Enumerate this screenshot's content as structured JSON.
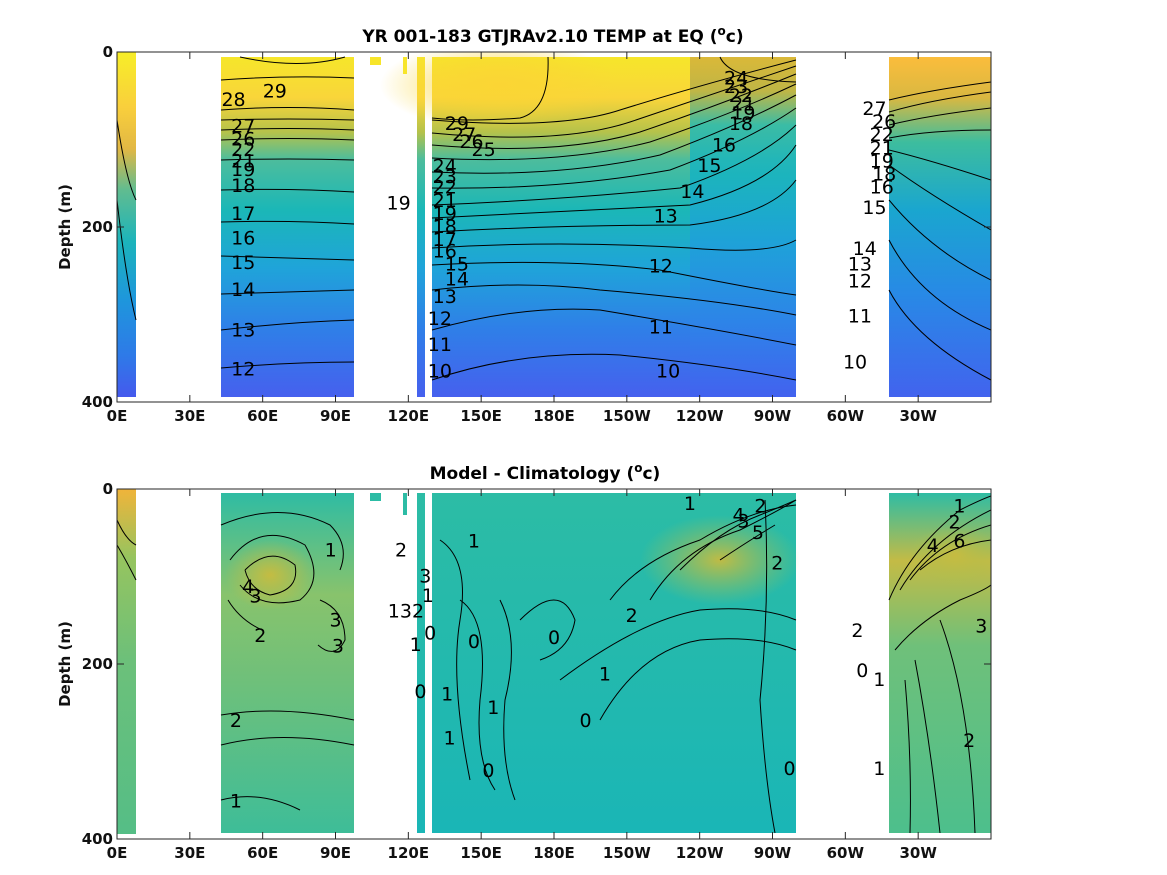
{
  "chart_data": [
    {
      "type": "heatmap",
      "title_main": "YR 001-183 GTJRAv2.10 TEMP at EQ (",
      "title_unit": "c)",
      "ylabel": "Depth (m)",
      "x_tick_labels": [
        "0E",
        "30E",
        "60E",
        "90E",
        "120E",
        "150E",
        "180E",
        "150W",
        "120W",
        "90W",
        "60W",
        "30W"
      ],
      "x_ticks_deg": [
        0,
        30,
        60,
        90,
        120,
        150,
        180,
        210,
        240,
        270,
        300,
        330
      ],
      "x_range": [
        0,
        360
      ],
      "y_tick_labels": [
        "0",
        "200",
        "400"
      ],
      "y_ticks": [
        0,
        200,
        400
      ],
      "y_range": [
        0,
        400
      ],
      "y_reversed": true,
      "land_gaps": [
        [
          8,
          43
        ],
        [
          98,
          117
        ],
        [
          125,
          127
        ],
        [
          280,
          302
        ]
      ],
      "colormap": "parula",
      "contour_labels": [
        {
          "text": "29",
          "lon": 65,
          "depth": 45
        },
        {
          "text": "28",
          "lon": 48,
          "depth": 55
        },
        {
          "text": "27",
          "lon": 52,
          "depth": 85
        },
        {
          "text": "26",
          "lon": 52,
          "depth": 100
        },
        {
          "text": "22",
          "lon": 52,
          "depth": 112
        },
        {
          "text": "21",
          "lon": 52,
          "depth": 125
        },
        {
          "text": "19",
          "lon": 52,
          "depth": 135
        },
        {
          "text": "18",
          "lon": 52,
          "depth": 153
        },
        {
          "text": "17",
          "lon": 52,
          "depth": 185
        },
        {
          "text": "16",
          "lon": 52,
          "depth": 213
        },
        {
          "text": "15",
          "lon": 52,
          "depth": 241
        },
        {
          "text": "14",
          "lon": 52,
          "depth": 272
        },
        {
          "text": "13",
          "lon": 52,
          "depth": 318
        },
        {
          "text": "12",
          "lon": 52,
          "depth": 363
        },
        {
          "text": "19",
          "lon": 116,
          "depth": 173
        },
        {
          "text": "29",
          "lon": 140,
          "depth": 82
        },
        {
          "text": "27",
          "lon": 143,
          "depth": 95
        },
        {
          "text": "26",
          "lon": 146,
          "depth": 103
        },
        {
          "text": "25",
          "lon": 151,
          "depth": 112
        },
        {
          "text": "24",
          "lon": 135,
          "depth": 131
        },
        {
          "text": "23",
          "lon": 135,
          "depth": 143
        },
        {
          "text": "22",
          "lon": 135,
          "depth": 155
        },
        {
          "text": "21",
          "lon": 135,
          "depth": 170
        },
        {
          "text": "19",
          "lon": 135,
          "depth": 185
        },
        {
          "text": "18",
          "lon": 135,
          "depth": 200
        },
        {
          "text": "17",
          "lon": 135,
          "depth": 215
        },
        {
          "text": "16",
          "lon": 135,
          "depth": 228
        },
        {
          "text": "15",
          "lon": 140,
          "depth": 243
        },
        {
          "text": "14",
          "lon": 140,
          "depth": 260
        },
        {
          "text": "13",
          "lon": 135,
          "depth": 280
        },
        {
          "text": "12",
          "lon": 133,
          "depth": 305
        },
        {
          "text": "11",
          "lon": 133,
          "depth": 335
        },
        {
          "text": "10",
          "lon": 133,
          "depth": 365
        },
        {
          "text": "24",
          "lon": 255,
          "depth": 30
        },
        {
          "text": "23",
          "lon": 255,
          "depth": 40
        },
        {
          "text": "22",
          "lon": 257,
          "depth": 50
        },
        {
          "text": "21",
          "lon": 258,
          "depth": 60
        },
        {
          "text": "19",
          "lon": 258,
          "depth": 70
        },
        {
          "text": "18",
          "lon": 257,
          "depth": 82
        },
        {
          "text": "16",
          "lon": 250,
          "depth": 107
        },
        {
          "text": "15",
          "lon": 244,
          "depth": 130
        },
        {
          "text": "14",
          "lon": 237,
          "depth": 160
        },
        {
          "text": "13",
          "lon": 226,
          "depth": 188
        },
        {
          "text": "12",
          "lon": 224,
          "depth": 245
        },
        {
          "text": "11",
          "lon": 224,
          "depth": 315
        },
        {
          "text": "10",
          "lon": 227,
          "depth": 365
        },
        {
          "text": "27",
          "lon": 312,
          "depth": 65
        },
        {
          "text": "26",
          "lon": 316,
          "depth": 80
        },
        {
          "text": "22",
          "lon": 315,
          "depth": 95
        },
        {
          "text": "21",
          "lon": 315,
          "depth": 110
        },
        {
          "text": "19",
          "lon": 315,
          "depth": 125
        },
        {
          "text": "18",
          "lon": 316,
          "depth": 140
        },
        {
          "text": "16",
          "lon": 315,
          "depth": 155
        },
        {
          "text": "15",
          "lon": 312,
          "depth": 178
        },
        {
          "text": "14",
          "lon": 308,
          "depth": 225
        },
        {
          "text": "13",
          "lon": 306,
          "depth": 243
        },
        {
          "text": "12",
          "lon": 306,
          "depth": 262
        },
        {
          "text": "11",
          "lon": 306,
          "depth": 302
        },
        {
          "text": "10",
          "lon": 304,
          "depth": 355
        }
      ]
    },
    {
      "type": "heatmap",
      "title_main": "Model - Climatology (",
      "title_unit": "c)",
      "ylabel": "Depth (m)",
      "x_tick_labels": [
        "0E",
        "30E",
        "60E",
        "90E",
        "120E",
        "150E",
        "180E",
        "150W",
        "120W",
        "90W",
        "60W",
        "30W"
      ],
      "x_ticks_deg": [
        0,
        30,
        60,
        90,
        120,
        150,
        180,
        210,
        240,
        270,
        300,
        330
      ],
      "x_range": [
        0,
        360
      ],
      "y_tick_labels": [
        "0",
        "200",
        "400"
      ],
      "y_ticks": [
        0,
        200,
        400
      ],
      "y_range": [
        0,
        400
      ],
      "y_reversed": true,
      "land_gaps": [
        [
          8,
          43
        ],
        [
          98,
          117
        ],
        [
          125,
          127
        ],
        [
          280,
          302
        ]
      ],
      "colormap": "parula",
      "contour_labels": [
        {
          "text": "1",
          "lon": 88,
          "depth": 70
        },
        {
          "text": "4",
          "lon": 54,
          "depth": 112
        },
        {
          "text": "3",
          "lon": 57,
          "depth": 123
        },
        {
          "text": "3",
          "lon": 90,
          "depth": 150
        },
        {
          "text": "2",
          "lon": 59,
          "depth": 168
        },
        {
          "text": "3",
          "lon": 91,
          "depth": 180
        },
        {
          "text": "2",
          "lon": 49,
          "depth": 265
        },
        {
          "text": "1",
          "lon": 49,
          "depth": 357
        },
        {
          "text": "2",
          "lon": 117,
          "depth": 70
        },
        {
          "text": "3",
          "lon": 127,
          "depth": 100
        },
        {
          "text": "1",
          "lon": 128,
          "depth": 122
        },
        {
          "text": "0",
          "lon": 129,
          "depth": 165
        },
        {
          "text": "132",
          "lon": 119,
          "depth": 140
        },
        {
          "text": "1",
          "lon": 123,
          "depth": 178
        },
        {
          "text": "0",
          "lon": 125,
          "depth": 232
        },
        {
          "text": "1",
          "lon": 136,
          "depth": 235
        },
        {
          "text": "1",
          "lon": 137,
          "depth": 285
        },
        {
          "text": "0",
          "lon": 147,
          "depth": 175
        },
        {
          "text": "1",
          "lon": 155,
          "depth": 250
        },
        {
          "text": "0",
          "lon": 153,
          "depth": 322
        },
        {
          "text": "1",
          "lon": 147,
          "depth": 60
        },
        {
          "text": "0",
          "lon": 180,
          "depth": 170
        },
        {
          "text": "2",
          "lon": 212,
          "depth": 145
        },
        {
          "text": "1",
          "lon": 201,
          "depth": 212
        },
        {
          "text": "0",
          "lon": 193,
          "depth": 265
        },
        {
          "text": "1",
          "lon": 236,
          "depth": 17
        },
        {
          "text": "4",
          "lon": 256,
          "depth": 30
        },
        {
          "text": "3",
          "lon": 258,
          "depth": 37
        },
        {
          "text": "2",
          "lon": 265,
          "depth": 20
        },
        {
          "text": "5",
          "lon": 264,
          "depth": 50
        },
        {
          "text": "2",
          "lon": 272,
          "depth": 85
        },
        {
          "text": "0",
          "lon": 277,
          "depth": 320
        },
        {
          "text": "1",
          "lon": 347,
          "depth": 20
        },
        {
          "text": "2",
          "lon": 345,
          "depth": 38
        },
        {
          "text": "4",
          "lon": 336,
          "depth": 65
        },
        {
          "text": "6",
          "lon": 347,
          "depth": 60
        },
        {
          "text": "3",
          "lon": 356,
          "depth": 157
        },
        {
          "text": "2",
          "lon": 305,
          "depth": 162
        },
        {
          "text": "0",
          "lon": 307,
          "depth": 208
        },
        {
          "text": "1",
          "lon": 314,
          "depth": 218
        },
        {
          "text": "2",
          "lon": 351,
          "depth": 288
        },
        {
          "text": "1",
          "lon": 314,
          "depth": 320
        }
      ]
    }
  ]
}
